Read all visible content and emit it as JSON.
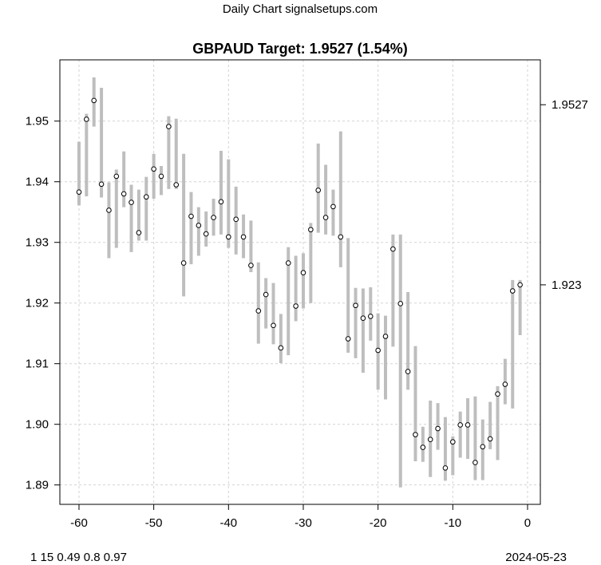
{
  "header": "Daily Chart signalsetups.com",
  "footer_left": "1 15 0.49 0.8 0.97",
  "footer_right": "2024-05-23",
  "colors": {
    "bar": "#bebebe",
    "grid": "#d3d3d3",
    "point": "#000000"
  },
  "chart_data": {
    "type": "ohlc-range",
    "title": "GBPAUD Target: 1.9527 (1.54%)",
    "xlabel": "",
    "ylabel": "",
    "xlim": [
      -62.56,
      1.71
    ],
    "ylim": [
      1.8868,
      1.9601
    ],
    "grid": true,
    "x_ticks": [
      -60,
      -50,
      -40,
      -30,
      -20,
      -10,
      0
    ],
    "x_tick_labels": [
      "-60",
      "-50",
      "-40",
      "-30",
      "-20",
      "-10",
      "0"
    ],
    "y_ticks": [
      1.89,
      1.9,
      1.91,
      1.92,
      1.93,
      1.94,
      1.95
    ],
    "y_tick_labels": [
      "1.89",
      "1.90",
      "1.91",
      "1.92",
      "1.93",
      "1.94",
      "1.95"
    ],
    "right_ticks": [
      1.9527,
      1.923
    ],
    "right_tick_labels": [
      "1.9527",
      "1.923"
    ],
    "x": [
      -60,
      -59,
      -58,
      -57,
      -56,
      -55,
      -54,
      -53,
      -52,
      -51,
      -50,
      -49,
      -48,
      -47,
      -46,
      -45,
      -44,
      -43,
      -42,
      -41,
      -40,
      -39,
      -38,
      -37,
      -36,
      -35,
      -34,
      -33,
      -32,
      -31,
      -30,
      -29,
      -28,
      -27,
      -26,
      -25,
      -24,
      -23,
      -22,
      -21,
      -20,
      -19,
      -18,
      -17,
      -16,
      -15,
      -14,
      -13,
      -12,
      -11,
      -10,
      -9,
      -8,
      -7,
      -6,
      -5,
      -4,
      -3,
      -2,
      -1
    ],
    "close": [
      1.9383,
      1.9503,
      1.9534,
      1.9396,
      1.9353,
      1.9409,
      1.938,
      1.9366,
      1.9316,
      1.9375,
      1.9421,
      1.9409,
      1.9491,
      1.9395,
      1.9266,
      1.9343,
      1.9328,
      1.9314,
      1.9341,
      1.9367,
      1.9309,
      1.9338,
      1.9309,
      1.9262,
      1.9187,
      1.9214,
      1.9163,
      1.9126,
      1.9266,
      1.9195,
      1.925,
      1.9321,
      1.9386,
      1.9341,
      1.9359,
      1.9309,
      1.9141,
      1.9196,
      1.9175,
      1.9178,
      1.9122,
      1.9145,
      1.9289,
      1.9199,
      1.9087,
      1.8983,
      1.8962,
      1.8975,
      1.8993,
      1.8928,
      1.8971,
      1.8999,
      1.8999,
      1.8937,
      1.8963,
      1.8976,
      1.905,
      1.9066,
      1.922,
      1.923
    ],
    "high": [
      1.9466,
      1.9512,
      1.9572,
      1.9555,
      1.9399,
      1.942,
      1.945,
      1.9395,
      1.9387,
      1.9408,
      1.9446,
      1.9426,
      1.9508,
      1.9504,
      1.9446,
      1.9383,
      1.9358,
      1.9351,
      1.9372,
      1.9451,
      1.9437,
      1.9392,
      1.9346,
      1.9336,
      1.9267,
      1.9241,
      1.9233,
      1.9182,
      1.9292,
      1.9278,
      1.9282,
      1.9332,
      1.9463,
      1.9428,
      1.9387,
      1.9483,
      1.9307,
      1.9225,
      1.9224,
      1.9226,
      1.9183,
      1.9179,
      1.9313,
      1.9313,
      1.9218,
      1.9129,
      1.8996,
      1.9039,
      1.9035,
      1.9012,
      1.898,
      1.9021,
      1.9043,
      1.9046,
      1.9008,
      1.9037,
      1.9063,
      1.9108,
      1.9238,
      1.9238
    ],
    "low": [
      1.9361,
      1.9376,
      1.9491,
      1.9374,
      1.9274,
      1.9291,
      1.9358,
      1.9284,
      1.9303,
      1.9303,
      1.9372,
      1.9378,
      1.9388,
      1.9388,
      1.9211,
      1.9264,
      1.9278,
      1.9293,
      1.9311,
      1.9313,
      1.9291,
      1.928,
      1.9274,
      1.9251,
      1.9133,
      1.9158,
      1.9132,
      1.9101,
      1.9114,
      1.917,
      1.9191,
      1.92,
      1.9316,
      1.9313,
      1.9311,
      1.9259,
      1.9118,
      1.9109,
      1.9085,
      1.9138,
      1.9057,
      1.9041,
      1.9128,
      1.8896,
      1.9057,
      1.8939,
      1.8938,
      1.8913,
      1.8958,
      1.8907,
      1.8916,
      1.8945,
      1.8943,
      1.8908,
      1.8908,
      1.8959,
      1.8941,
      1.9033,
      1.9026,
      1.9147
    ]
  }
}
